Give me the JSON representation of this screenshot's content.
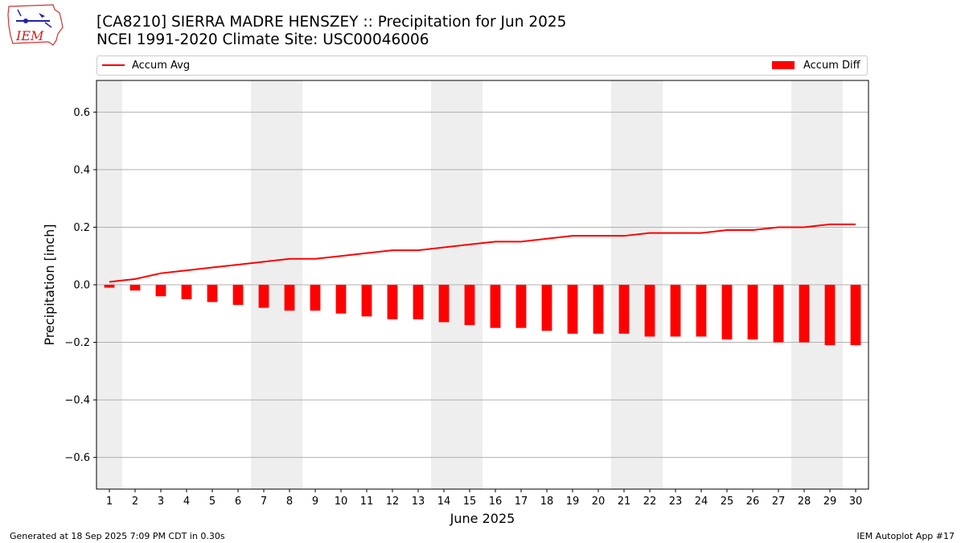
{
  "header": {
    "title_line1": "[CA8210] SIERRA MADRE HENSZEY :: Precipitation for Jun 2025",
    "title_line2": "NCEI 1991-2020 Climate Site: USC00046006",
    "logo_text": "IEM",
    "logo_icon": "iowa-state-outline-logo-icon"
  },
  "footer": {
    "left": "Generated at 18 Sep 2025 7:09 PM CDT in 0.30s",
    "right": "IEM Autoplot App #17"
  },
  "colors": {
    "series": "#ff0000",
    "weekend_shade": "#eeeeee",
    "grid": "#b0b0b0",
    "legend_border": "#cccccc"
  },
  "chart_data": {
    "type": "bar",
    "xlabel": "June 2025",
    "ylabel": "Precipitation [inch]",
    "ylim": [
      -0.71,
      0.71
    ],
    "xlim": [
      0.5,
      30.5
    ],
    "yticks": [
      -0.6,
      -0.4,
      -0.2,
      0.0,
      0.2,
      0.4,
      0.6
    ],
    "ytick_labels": [
      "−0.6",
      "−0.4",
      "−0.2",
      "0.0",
      "0.2",
      "0.4",
      "0.6"
    ],
    "grid": "horizontal",
    "legend_placement": "top, above plot",
    "shaded_weekends": [
      [
        0.5,
        1.5
      ],
      [
        6.5,
        8.5
      ],
      [
        13.5,
        15.5
      ],
      [
        20.5,
        22.5
      ],
      [
        27.5,
        29.5
      ]
    ],
    "categories": [
      "1",
      "2",
      "3",
      "4",
      "5",
      "6",
      "7",
      "8",
      "9",
      "10",
      "11",
      "12",
      "13",
      "14",
      "15",
      "16",
      "17",
      "18",
      "19",
      "20",
      "21",
      "22",
      "23",
      "24",
      "25",
      "26",
      "27",
      "28",
      "29",
      "30"
    ],
    "series": [
      {
        "name": "Accum Avg",
        "type": "line",
        "values": [
          0.01,
          0.02,
          0.04,
          0.05,
          0.06,
          0.07,
          0.08,
          0.09,
          0.09,
          0.1,
          0.11,
          0.12,
          0.12,
          0.13,
          0.14,
          0.15,
          0.15,
          0.16,
          0.17,
          0.17,
          0.17,
          0.18,
          0.18,
          0.18,
          0.19,
          0.19,
          0.2,
          0.2,
          0.21,
          0.21
        ]
      },
      {
        "name": "Accum Diff",
        "type": "bar",
        "values": [
          -0.01,
          -0.02,
          -0.04,
          -0.05,
          -0.06,
          -0.07,
          -0.08,
          -0.09,
          -0.09,
          -0.1,
          -0.11,
          -0.12,
          -0.12,
          -0.13,
          -0.14,
          -0.15,
          -0.15,
          -0.16,
          -0.17,
          -0.17,
          -0.17,
          -0.18,
          -0.18,
          -0.18,
          -0.19,
          -0.19,
          -0.2,
          -0.2,
          -0.21,
          -0.21
        ]
      }
    ]
  }
}
